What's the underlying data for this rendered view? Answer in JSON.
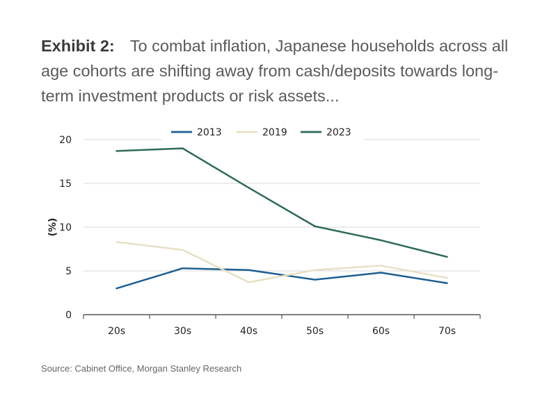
{
  "exhibit": {
    "label": "Exhibit 2:",
    "caption": "To combat inflation, Japanese households across all age cohorts are shifting away from cash/deposits towards long-term investment products or risk assets..."
  },
  "source": "Source: Cabinet Office, Morgan Stanley Research",
  "colors": {
    "series_2013": "#1d5e91",
    "series_2019": "#e8dfc4",
    "series_2023": "#2d6a55",
    "grid": "#d9d9d9",
    "axis": "#555555"
  },
  "chart_data": {
    "type": "line",
    "title": "",
    "xlabel": "",
    "ylabel": "(%)",
    "categories": [
      "20s",
      "30s",
      "40s",
      "50s",
      "60s",
      "70s"
    ],
    "ylim": [
      0,
      20
    ],
    "yticks": [
      0,
      5,
      10,
      15,
      20
    ],
    "grid": true,
    "legend_position": "top",
    "series": [
      {
        "name": "2013",
        "values": [
          3.0,
          5.3,
          5.1,
          4.0,
          4.8,
          3.6
        ]
      },
      {
        "name": "2019",
        "values": [
          8.3,
          7.4,
          3.7,
          5.1,
          5.6,
          4.2
        ]
      },
      {
        "name": "2023",
        "values": [
          18.7,
          19.0,
          14.5,
          10.1,
          8.5,
          6.6
        ]
      }
    ]
  }
}
